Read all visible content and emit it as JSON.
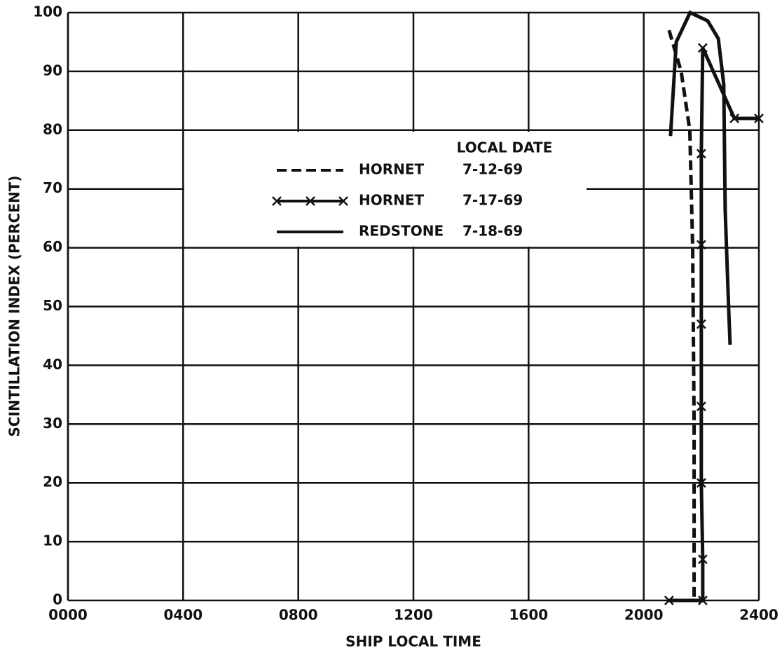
{
  "chart_data": {
    "type": "line",
    "x_label": "SHIP LOCAL TIME",
    "y_label": "SCINTILLATION INDEX (PERCENT)",
    "legend_title": "LOCAL DATE",
    "xlim": [
      0,
      2400
    ],
    "xticks": [
      {
        "value": 0,
        "label": "0000"
      },
      {
        "value": 400,
        "label": "0400"
      },
      {
        "value": 800,
        "label": "0800"
      },
      1200,
      1600,
      2000,
      2400
    ],
    "ylim": [
      0,
      100
    ],
    "yticks": [
      0,
      10,
      20,
      30,
      40,
      50,
      60,
      70,
      80,
      90,
      100
    ],
    "grid": true,
    "series": [
      {
        "name": "HORNET",
        "date": "7-12-69",
        "color": "#111111",
        "style": "dashed",
        "marker": "none",
        "x": [
          2088,
          2130,
          2160,
          2170,
          2175,
          2175
        ],
        "values": [
          97,
          90,
          80,
          60,
          30,
          0
        ]
      },
      {
        "name": "HORNET",
        "date": "7-17-69",
        "color": "#111111",
        "style": "solid",
        "marker": "x",
        "x": [
          2088,
          2205,
          2205,
          2200,
          2200,
          2200,
          2200,
          2200,
          2205,
          2315,
          2400
        ],
        "values": [
          0,
          0,
          7,
          20,
          33,
          47,
          60.5,
          76,
          94,
          82,
          82
        ]
      },
      {
        "name": "REDSTONE",
        "date": "7-18-69",
        "color": "#111111",
        "style": "solid",
        "marker": "none",
        "x": [
          2093,
          2113,
          2161,
          2222,
          2259,
          2278,
          2283,
          2295,
          2300
        ],
        "values": [
          79,
          95,
          100,
          98.6,
          95.6,
          87.8,
          66.4,
          49.7,
          43.5
        ]
      }
    ]
  }
}
